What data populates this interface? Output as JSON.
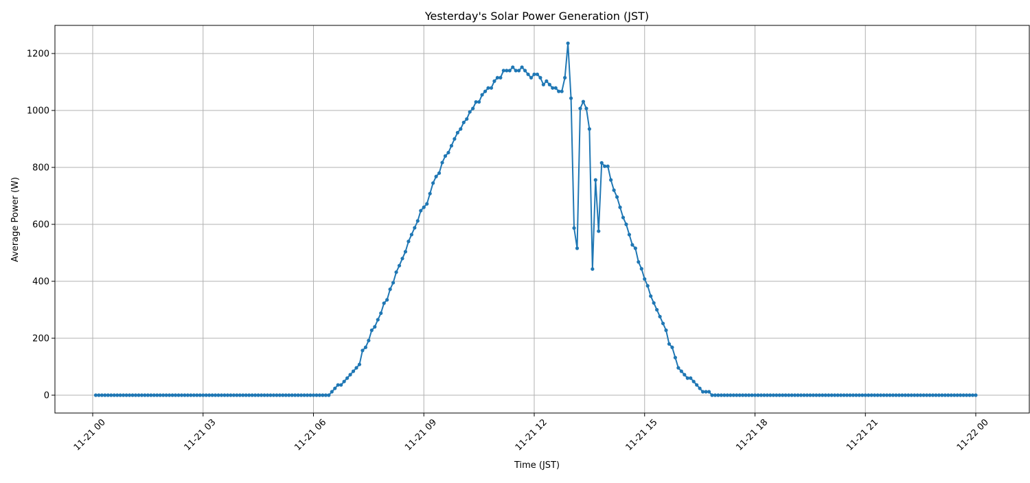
{
  "chart_data": {
    "type": "line",
    "title": "Yesterday's Solar Power Generation (JST)",
    "xlabel": "Time (JST)",
    "ylabel": "Average Power (W)",
    "grid": true,
    "line_color": "#1f77b4",
    "marker": "circle",
    "xlim": [
      "11-20 22:57",
      "11-22 01:28"
    ],
    "ylim": [
      -63,
      1300
    ],
    "x_ticks": [
      "11-21 00",
      "11-21 03",
      "11-21 06",
      "11-21 09",
      "11-21 12",
      "11-21 15",
      "11-21 18",
      "11-21 21",
      "11-22 00"
    ],
    "y_ticks": [
      0,
      200,
      400,
      600,
      800,
      1000,
      1200
    ],
    "x": [
      "11-21 00:05",
      "11-21 00:10",
      "11-21 00:15",
      "11-21 00:20",
      "11-21 00:25",
      "11-21 00:30",
      "11-21 00:35",
      "11-21 00:40",
      "11-21 00:45",
      "11-21 00:50",
      "11-21 00:55",
      "11-21 01:00",
      "11-21 01:05",
      "11-21 01:10",
      "11-21 01:15",
      "11-21 01:20",
      "11-21 01:25",
      "11-21 01:30",
      "11-21 01:35",
      "11-21 01:40",
      "11-21 01:45",
      "11-21 01:50",
      "11-21 01:55",
      "11-21 02:00",
      "11-21 02:05",
      "11-21 02:10",
      "11-21 02:15",
      "11-21 02:20",
      "11-21 02:25",
      "11-21 02:30",
      "11-21 02:35",
      "11-21 02:40",
      "11-21 02:45",
      "11-21 02:50",
      "11-21 02:55",
      "11-21 03:00",
      "11-21 03:05",
      "11-21 03:10",
      "11-21 03:15",
      "11-21 03:20",
      "11-21 03:25",
      "11-21 03:30",
      "11-21 03:35",
      "11-21 03:40",
      "11-21 03:45",
      "11-21 03:50",
      "11-21 03:55",
      "11-21 04:00",
      "11-21 04:05",
      "11-21 04:10",
      "11-21 04:15",
      "11-21 04:20",
      "11-21 04:25",
      "11-21 04:30",
      "11-21 04:35",
      "11-21 04:40",
      "11-21 04:45",
      "11-21 04:50",
      "11-21 04:55",
      "11-21 05:00",
      "11-21 05:05",
      "11-21 05:10",
      "11-21 05:15",
      "11-21 05:20",
      "11-21 05:25",
      "11-21 05:30",
      "11-21 05:35",
      "11-21 05:40",
      "11-21 05:45",
      "11-21 05:50",
      "11-21 05:55",
      "11-21 06:00",
      "11-21 06:05",
      "11-21 06:10",
      "11-21 06:15",
      "11-21 06:20",
      "11-21 06:25",
      "11-21 06:30",
      "11-21 06:35",
      "11-21 06:40",
      "11-21 06:45",
      "11-21 06:50",
      "11-21 06:55",
      "11-21 07:00",
      "11-21 07:05",
      "11-21 07:10",
      "11-21 07:15",
      "11-21 07:20",
      "11-21 07:25",
      "11-21 07:30",
      "11-21 07:35",
      "11-21 07:40",
      "11-21 07:45",
      "11-21 07:50",
      "11-21 07:55",
      "11-21 08:00",
      "11-21 08:05",
      "11-21 08:10",
      "11-21 08:15",
      "11-21 08:20",
      "11-21 08:25",
      "11-21 08:30",
      "11-21 08:35",
      "11-21 08:40",
      "11-21 08:45",
      "11-21 08:50",
      "11-21 08:55",
      "11-21 09:00",
      "11-21 09:05",
      "11-21 09:10",
      "11-21 09:15",
      "11-21 09:20",
      "11-21 09:25",
      "11-21 09:30",
      "11-21 09:35",
      "11-21 09:40",
      "11-21 09:45",
      "11-21 09:50",
      "11-21 09:55",
      "11-21 10:00",
      "11-21 10:05",
      "11-21 10:10",
      "11-21 10:15",
      "11-21 10:20",
      "11-21 10:25",
      "11-21 10:30",
      "11-21 10:35",
      "11-21 10:40",
      "11-21 10:45",
      "11-21 10:50",
      "11-21 10:55",
      "11-21 11:00",
      "11-21 11:05",
      "11-21 11:10",
      "11-21 11:15",
      "11-21 11:20",
      "11-21 11:25",
      "11-21 11:30",
      "11-21 11:35",
      "11-21 11:40",
      "11-21 11:45",
      "11-21 11:50",
      "11-21 11:55",
      "11-21 12:00",
      "11-21 12:05",
      "11-21 12:10",
      "11-21 12:15",
      "11-21 12:20",
      "11-21 12:25",
      "11-21 12:30",
      "11-21 12:35",
      "11-21 12:40",
      "11-21 12:45",
      "11-21 12:50",
      "11-21 12:55",
      "11-21 13:00",
      "11-21 13:05",
      "11-21 13:10",
      "11-21 13:15",
      "11-21 13:20",
      "11-21 13:25",
      "11-21 13:30",
      "11-21 13:35",
      "11-21 13:40",
      "11-21 13:45",
      "11-21 13:50",
      "11-21 13:55",
      "11-21 14:00",
      "11-21 14:05",
      "11-21 14:10",
      "11-21 14:15",
      "11-21 14:20",
      "11-21 14:25",
      "11-21 14:30",
      "11-21 14:35",
      "11-21 14:40",
      "11-21 14:45",
      "11-21 14:50",
      "11-21 14:55",
      "11-21 15:00",
      "11-21 15:05",
      "11-21 15:10",
      "11-21 15:15",
      "11-21 15:20",
      "11-21 15:25",
      "11-21 15:30",
      "11-21 15:35",
      "11-21 15:40",
      "11-21 15:45",
      "11-21 15:50",
      "11-21 15:55",
      "11-21 16:00",
      "11-21 16:05",
      "11-21 16:10",
      "11-21 16:15",
      "11-21 16:20",
      "11-21 16:25",
      "11-21 16:30",
      "11-21 16:35",
      "11-21 16:40",
      "11-21 16:45",
      "11-21 16:50",
      "11-21 16:55",
      "11-21 17:00",
      "11-21 17:05",
      "11-21 17:10",
      "11-21 17:15",
      "11-21 17:20",
      "11-21 17:25",
      "11-21 17:30",
      "11-21 17:35",
      "11-21 17:40",
      "11-21 17:45",
      "11-21 17:50",
      "11-21 17:55",
      "11-21 18:00",
      "11-21 18:05",
      "11-21 18:10",
      "11-21 18:15",
      "11-21 18:20",
      "11-21 18:25",
      "11-21 18:30",
      "11-21 18:35",
      "11-21 18:40",
      "11-21 18:45",
      "11-21 18:50",
      "11-21 18:55",
      "11-21 19:00",
      "11-21 19:05",
      "11-21 19:10",
      "11-21 19:15",
      "11-21 19:20",
      "11-21 19:25",
      "11-21 19:30",
      "11-21 19:35",
      "11-21 19:40",
      "11-21 19:45",
      "11-21 19:50",
      "11-21 19:55",
      "11-21 20:00",
      "11-21 20:05",
      "11-21 20:10",
      "11-21 20:15",
      "11-21 20:20",
      "11-21 20:25",
      "11-21 20:30",
      "11-21 20:35",
      "11-21 20:40",
      "11-21 20:45",
      "11-21 20:50",
      "11-21 20:55",
      "11-21 21:00",
      "11-21 21:05",
      "11-21 21:10",
      "11-21 21:15",
      "11-21 21:20",
      "11-21 21:25",
      "11-21 21:30",
      "11-21 21:35",
      "11-21 21:40",
      "11-21 21:45",
      "11-21 21:50",
      "11-21 21:55",
      "11-21 22:00",
      "11-21 22:05",
      "11-21 22:10",
      "11-21 22:15",
      "11-21 22:20",
      "11-21 22:25",
      "11-21 22:30",
      "11-21 22:35",
      "11-21 22:40",
      "11-21 22:45",
      "11-21 22:50",
      "11-21 22:55",
      "11-21 23:00",
      "11-21 23:05",
      "11-21 23:10",
      "11-21 23:15",
      "11-21 23:20",
      "11-21 23:25",
      "11-21 23:30",
      "11-21 23:35",
      "11-21 23:40",
      "11-21 23:45",
      "11-21 23:50",
      "11-21 23:55",
      "11-22 00:00"
    ],
    "y": [
      0,
      0,
      0,
      0,
      0,
      0,
      0,
      0,
      0,
      0,
      0,
      0,
      0,
      0,
      0,
      0,
      0,
      0,
      0,
      0,
      0,
      0,
      0,
      0,
      0,
      0,
      0,
      0,
      0,
      0,
      0,
      0,
      0,
      0,
      0,
      0,
      0,
      0,
      0,
      0,
      0,
      0,
      0,
      0,
      0,
      0,
      0,
      0,
      0,
      0,
      0,
      0,
      0,
      0,
      0,
      0,
      0,
      0,
      0,
      0,
      0,
      0,
      0,
      0,
      0,
      0,
      0,
      0,
      0,
      0,
      0,
      0,
      0,
      0,
      0,
      0,
      0,
      12,
      24,
      36,
      36,
      48,
      60,
      72,
      84,
      96,
      108,
      157,
      168,
      192,
      228,
      240,
      265,
      288,
      323,
      335,
      372,
      395,
      432,
      455,
      480,
      504,
      540,
      564,
      588,
      612,
      648,
      660,
      672,
      708,
      745,
      768,
      780,
      817,
      840,
      852,
      876,
      900,
      922,
      935,
      958,
      970,
      995,
      1007,
      1030,
      1030,
      1055,
      1067,
      1079,
      1079,
      1103,
      1115,
      1115,
      1140,
      1140,
      1140,
      1152,
      1140,
      1140,
      1152,
      1140,
      1127,
      1115,
      1127,
      1127,
      1115,
      1091,
      1103,
      1091,
      1079,
      1079,
      1067,
      1067,
      1115,
      1236,
      1043,
      587,
      516,
      1007,
      1031,
      1007,
      935,
      443,
      756,
      576,
      816,
      804,
      804,
      756,
      720,
      696,
      660,
      624,
      600,
      564,
      528,
      516,
      468,
      444,
      408,
      384,
      348,
      324,
      300,
      276,
      252,
      228,
      180,
      168,
      132,
      96,
      84,
      72,
      60,
      60,
      48,
      36,
      24,
      12,
      12,
      12,
      0,
      0,
      0,
      0,
      0,
      0,
      0,
      0,
      0,
      0,
      0,
      0,
      0,
      0,
      0,
      0,
      0,
      0,
      0,
      0,
      0,
      0,
      0,
      0,
      0,
      0,
      0,
      0,
      0,
      0,
      0,
      0,
      0,
      0,
      0,
      0,
      0,
      0,
      0,
      0,
      0,
      0,
      0,
      0,
      0,
      0,
      0,
      0,
      0,
      0,
      0,
      0,
      0,
      0,
      0,
      0,
      0,
      0,
      0,
      0,
      0,
      0,
      0,
      0,
      0,
      0,
      0,
      0,
      0,
      0,
      0,
      0,
      0,
      0,
      0,
      0,
      0,
      0,
      0,
      0,
      0,
      0,
      0,
      0,
      0,
      0,
      0
    ]
  }
}
